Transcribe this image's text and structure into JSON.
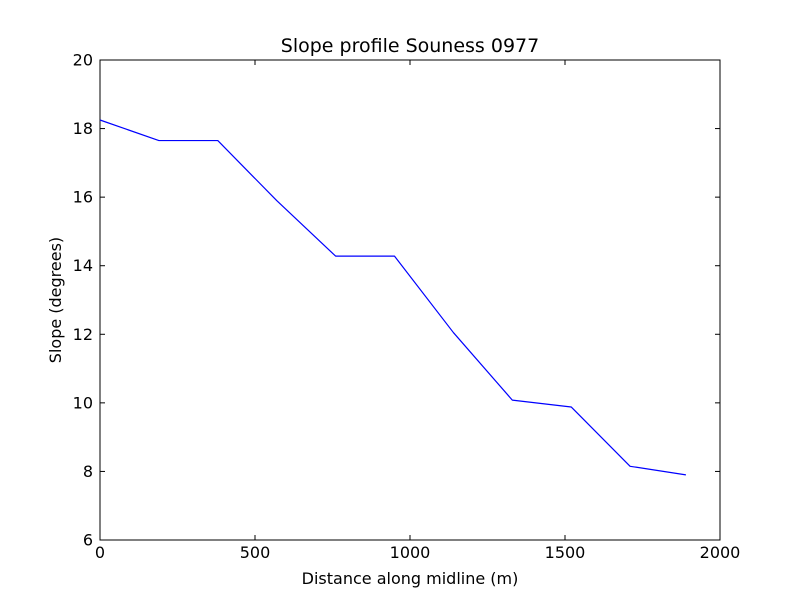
{
  "chart_data": {
    "type": "line",
    "title": "Slope profile Souness 0977",
    "xlabel": "Distance along midline (m)",
    "ylabel": "Slope (degrees)",
    "xlim": [
      0,
      2000
    ],
    "ylim": [
      6,
      20
    ],
    "xticks": [
      0,
      500,
      1000,
      1500,
      2000
    ],
    "yticks": [
      6,
      8,
      10,
      12,
      14,
      16,
      18,
      20
    ],
    "grid": false,
    "series": [
      {
        "color": "#0000ff",
        "x": [
          0,
          190,
          380,
          570,
          760,
          950,
          1140,
          1330,
          1520,
          1710,
          1890
        ],
        "y": [
          18.25,
          17.65,
          17.65,
          15.9,
          14.28,
          14.28,
          12.05,
          10.08,
          9.88,
          8.15,
          7.9
        ]
      }
    ]
  }
}
